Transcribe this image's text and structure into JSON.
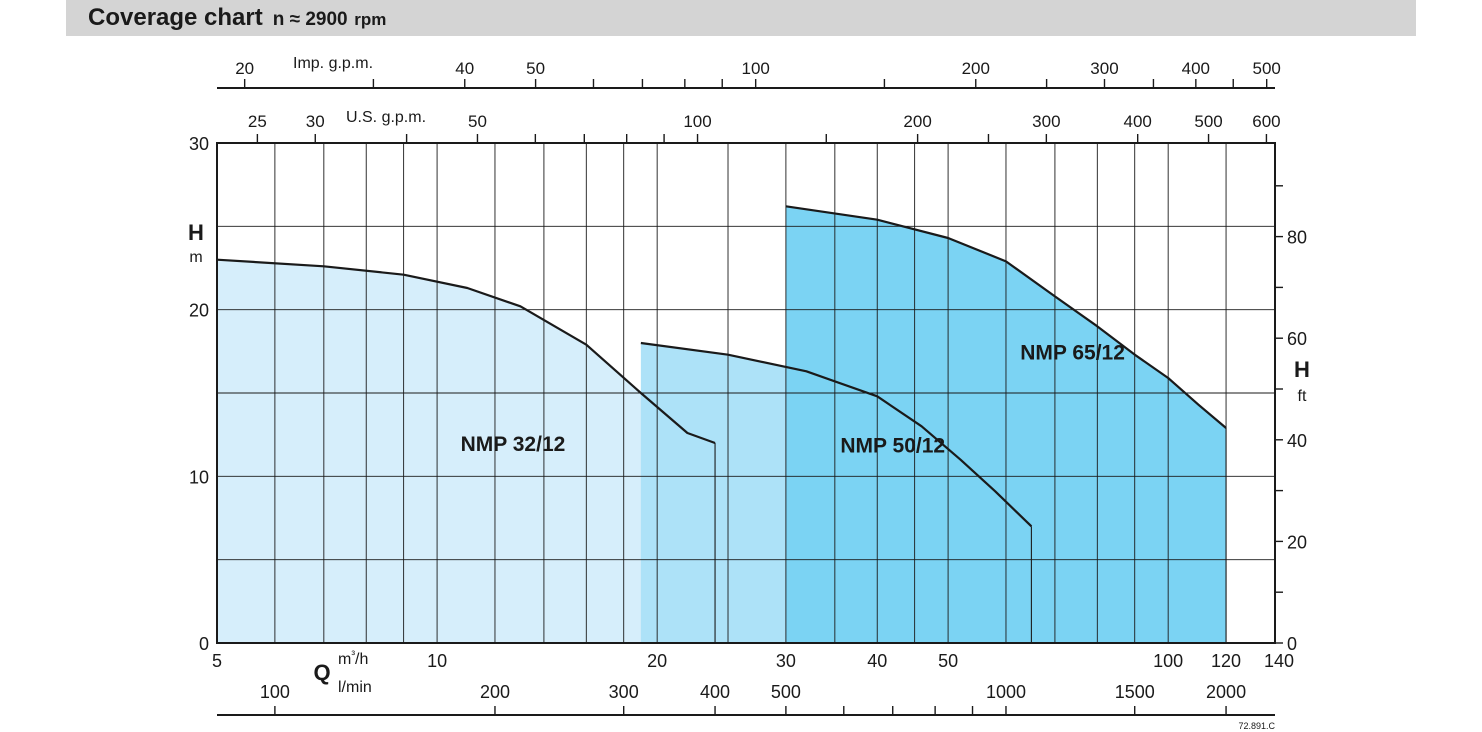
{
  "header": {
    "title": "Coverage chart",
    "speed_prefix": "n ≈ 2900",
    "speed_unit": "rpm"
  },
  "chart_data": {
    "type": "area",
    "x_scale": "log",
    "xlim": [
      5,
      140
    ],
    "ylim": [
      0,
      30
    ],
    "primary_x_label": "Q",
    "primary_x_unit": "m³/h",
    "primary_x_ticks": [
      5,
      10,
      20,
      30,
      40,
      50,
      100,
      120,
      140
    ],
    "secondary_x_axes": [
      {
        "unit": "l/min",
        "labeled_ticks": [
          100,
          200,
          300,
          400,
          500,
          1000,
          1500,
          2000
        ],
        "minor_ticks": [
          600,
          700,
          800,
          900
        ]
      },
      {
        "unit": "U.S. g.p.m.",
        "labeled_ticks": [
          25,
          30,
          50,
          100,
          200,
          300,
          400,
          500,
          600
        ],
        "minor_ticks": [
          40,
          60,
          70,
          80,
          90,
          150,
          250
        ]
      },
      {
        "unit": "Imp. g.p.m.",
        "labeled_ticks": [
          20,
          40,
          50,
          100,
          200,
          300,
          400,
          500
        ],
        "minor_ticks": [
          30,
          60,
          70,
          80,
          90,
          150,
          250,
          350,
          450
        ]
      }
    ],
    "y_left": {
      "label": "H",
      "unit": "m",
      "ticks": [
        0,
        10,
        20,
        30
      ]
    },
    "y_right": {
      "label": "H",
      "unit": "ft",
      "ticks": [
        0,
        20,
        40,
        60,
        80
      ],
      "minor_ticks": [
        10,
        30,
        50,
        70,
        90
      ]
    },
    "series": [
      {
        "name": "NMP 32/12",
        "color": "#d6eefb",
        "points": [
          [
            5,
            23
          ],
          [
            7,
            22.6
          ],
          [
            9,
            22.1
          ],
          [
            11,
            21.3
          ],
          [
            13,
            20.2
          ],
          [
            16,
            17.9
          ],
          [
            19,
            15.0
          ],
          [
            22,
            12.6
          ],
          [
            24,
            12.0
          ]
        ]
      },
      {
        "name": "NMP 50/12",
        "color": "#ade2f8",
        "points": [
          [
            19,
            18.0
          ],
          [
            25,
            17.3
          ],
          [
            32,
            16.3
          ],
          [
            40,
            14.8
          ],
          [
            46,
            13.0
          ],
          [
            52,
            11.0
          ],
          [
            58,
            9.1
          ],
          [
            65,
            7.0
          ]
        ]
      },
      {
        "name": "NMP 65/12",
        "color": "#7bd3f3",
        "points": [
          [
            30,
            26.2
          ],
          [
            40,
            25.4
          ],
          [
            50,
            24.3
          ],
          [
            60,
            22.9
          ],
          [
            70,
            20.8
          ],
          [
            80,
            19.0
          ],
          [
            90,
            17.3
          ],
          [
            100,
            15.9
          ],
          [
            110,
            14.3
          ],
          [
            120,
            12.9
          ]
        ]
      }
    ],
    "reference_code": "72.891.C"
  }
}
